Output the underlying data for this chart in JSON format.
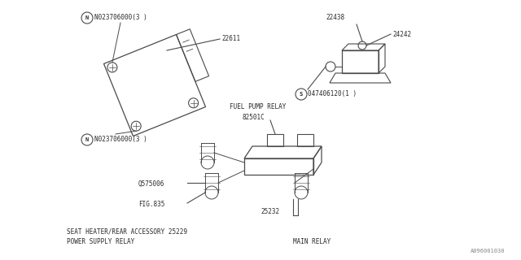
{
  "bg_color": "#ffffff",
  "line_color": "#4a4a4a",
  "text_color": "#2a2a2a",
  "fig_width": 6.4,
  "fig_height": 3.2,
  "watermark": "A096001030",
  "part1_N_top": "N023706000(3 )",
  "part1_N_bot": "N023706000(3 )",
  "part1_num": "22611",
  "part2_num": "22438",
  "part2_sub": "24242",
  "part2_s": "S047406120(1 )",
  "part3_fuel": "FUEL PUMP RELAY",
  "part3_fuel_num": "82501C",
  "part3_left1": "Q575006",
  "part3_fig": "FIG.835",
  "part3_mid": "25232",
  "part3_seat": "SEAT HEATER/REAR ACCESSORY 25229",
  "part3_power": "POWER SUPPLY RELAY",
  "part3_main": "MAIN RELAY"
}
